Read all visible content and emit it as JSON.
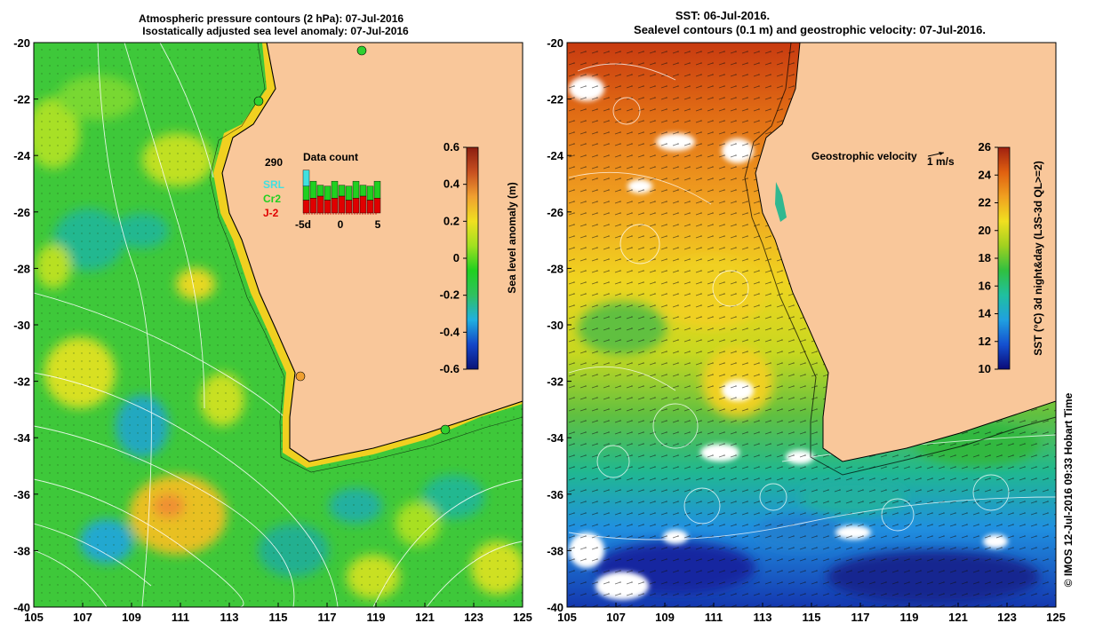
{
  "left_panel": {
    "title_line1": "Atmospheric pressure contours (2 hPa): 07-Jul-2016",
    "title_line2": "Isostatically adjusted sea level anomaly: 07-Jul-2016",
    "colorbar": {
      "label": "Sea level anomaly (m)",
      "ticks": [
        "0.6",
        "0.4",
        "0.2",
        "0",
        "-0.2",
        "-0.4",
        "-0.6"
      ],
      "stops": [
        "#0a1478",
        "#1446c8",
        "#20b0e0",
        "#30c060",
        "#20d020",
        "#a0e020",
        "#f0e020",
        "#f0a030",
        "#c85020",
        "#8c1e10"
      ]
    },
    "inset": {
      "title": "Data count",
      "count": "290",
      "legend": [
        {
          "name": "SRL",
          "color": "#40e0e0"
        },
        {
          "name": "Cr2",
          "color": "#20d020"
        },
        {
          "name": "J-2",
          "color": "#e00000"
        }
      ],
      "x_ticks": [
        "-5d",
        "0",
        "5"
      ]
    }
  },
  "right_panel": {
    "title_line1": "SST: 06-Jul-2016.",
    "title_line2": "Sealevel contours (0.1 m) and geostrophic velocity: 07-Jul-2016.",
    "velocity_label": "Geostrophic velocity",
    "velocity_scale": "1 m/s",
    "colorbar": {
      "label": "SST (°C) 3d night&day (L3S-3d QL>=2)",
      "ticks": [
        "26",
        "24",
        "22",
        "20",
        "18",
        "16",
        "14",
        "12",
        "10"
      ],
      "stops": [
        "#0a0a78",
        "#1450d0",
        "#20a0e0",
        "#20c0a0",
        "#30c040",
        "#a0d020",
        "#f0e020",
        "#f0a020",
        "#e06010",
        "#a02010"
      ]
    }
  },
  "x_ticks": [
    "105",
    "107",
    "109",
    "111",
    "113",
    "115",
    "117",
    "119",
    "121",
    "123",
    "125"
  ],
  "y_ticks": [
    "-20",
    "-22",
    "-24",
    "-26",
    "-28",
    "-30",
    "-32",
    "-34",
    "-36",
    "-38",
    "-40"
  ],
  "credit": "© IMOS 12-Jul-2016 09:33 Hobart Time",
  "colors": {
    "land": "#f9c79a",
    "ocean_green": "#3ec83a",
    "coast": "#000000"
  }
}
